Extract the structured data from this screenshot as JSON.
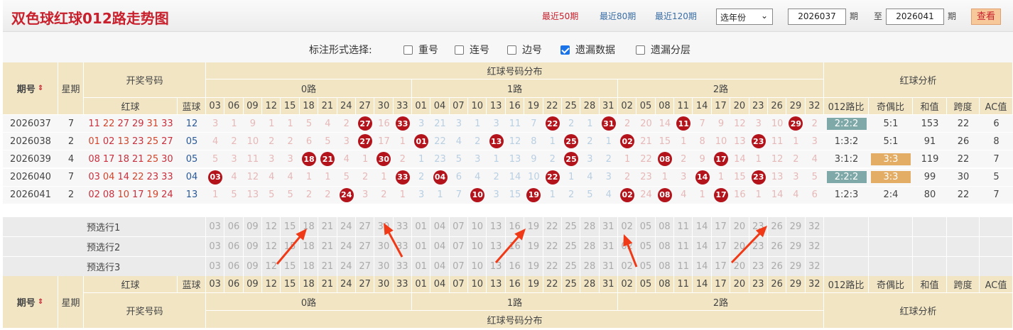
{
  "header": {
    "title": "双色球红球012路走势图",
    "recent": [
      "最近50期",
      "最近80期",
      "最近120期"
    ],
    "year_select": "选年份",
    "from": "2026037",
    "to": "2026041",
    "qi": "期",
    "zhi": "至",
    "view_button": "查看"
  },
  "options": {
    "label": "标注形式选择:",
    "items": [
      {
        "label": "重号",
        "checked": false
      },
      {
        "label": "连号",
        "checked": false
      },
      {
        "label": "边号",
        "checked": false
      },
      {
        "label": "遗漏数据",
        "checked": true
      },
      {
        "label": "遗漏分层",
        "checked": false
      }
    ]
  },
  "table_header": {
    "period": "期号",
    "sort": "⇕",
    "weekday": "星期",
    "draw": "开奖号码",
    "red": "红球",
    "blue": "蓝球",
    "dist": "红球号码分布",
    "roads": [
      "0路",
      "1路",
      "2路"
    ],
    "analysis": "红球分析",
    "analysis_cols": [
      "012路比",
      "奇偶比",
      "和值",
      "跨度",
      "AC值"
    ]
  },
  "columns": {
    "road0": [
      "03",
      "06",
      "09",
      "12",
      "15",
      "18",
      "21",
      "24",
      "27",
      "30",
      "33"
    ],
    "road1": [
      "01",
      "04",
      "07",
      "10",
      "13",
      "16",
      "19",
      "22",
      "25",
      "28",
      "31"
    ],
    "road2": [
      "02",
      "05",
      "08",
      "11",
      "14",
      "17",
      "20",
      "23",
      "26",
      "29",
      "32"
    ]
  },
  "colors": {
    "ball": "#b3131b",
    "road0": "#e6b8b8",
    "road1": "#b9cfe2",
    "road2": "#e6b8b8",
    "ratio_tag": "#7fa8a8",
    "parity_tag": "#e3ad66"
  },
  "rows": [
    {
      "period": "2026037",
      "weekday": "7",
      "reds": [
        "11",
        "22",
        "27",
        "29",
        "31",
        "33"
      ],
      "blue": "12",
      "omit": [
        "3",
        "1",
        "9",
        "1",
        "1",
        "5",
        "4",
        "2",
        "27",
        "16",
        "33",
        "3",
        "21",
        "3",
        "1",
        "3",
        "11",
        "7",
        "22",
        "2",
        "1",
        "31",
        "2",
        "20",
        "14",
        "11",
        "7",
        "9",
        "12",
        "3",
        "10",
        "29",
        "2"
      ],
      "ratio": "2:2:2",
      "ratio_tag": true,
      "parity": "5:1",
      "parity_tag": false,
      "sum": "153",
      "span": "22",
      "ac": "6"
    },
    {
      "period": "2026038",
      "weekday": "2",
      "reds": [
        "01",
        "02",
        "13",
        "23",
        "25",
        "27"
      ],
      "blue": "05",
      "omit": [
        "4",
        "2",
        "10",
        "2",
        "2",
        "6",
        "5",
        "3",
        "27",
        "17",
        "1",
        "01",
        "22",
        "4",
        "2",
        "13",
        "12",
        "8",
        "1",
        "25",
        "2",
        "1",
        "02",
        "21",
        "15",
        "1",
        "8",
        "10",
        "13",
        "23",
        "11",
        "1",
        "3"
      ],
      "ratio": "1:3:2",
      "ratio_tag": false,
      "parity": "5:1",
      "parity_tag": false,
      "sum": "91",
      "span": "26",
      "ac": "8"
    },
    {
      "period": "2026039",
      "weekday": "4",
      "reds": [
        "08",
        "17",
        "18",
        "21",
        "25",
        "30"
      ],
      "blue": "05",
      "omit": [
        "5",
        "3",
        "11",
        "3",
        "3",
        "18",
        "21",
        "4",
        "1",
        "30",
        "2",
        "1",
        "23",
        "5",
        "3",
        "1",
        "13",
        "9",
        "2",
        "25",
        "3",
        "2",
        "1",
        "22",
        "08",
        "2",
        "9",
        "17",
        "14",
        "1",
        "12",
        "2",
        "4"
      ],
      "ratio": "3:1:2",
      "ratio_tag": false,
      "parity": "3:3",
      "parity_tag": true,
      "sum": "119",
      "span": "22",
      "ac": "7"
    },
    {
      "period": "2026040",
      "weekday": "7",
      "reds": [
        "03",
        "04",
        "14",
        "22",
        "23",
        "33"
      ],
      "blue": "04",
      "omit": [
        "03",
        "4",
        "12",
        "4",
        "4",
        "1",
        "1",
        "5",
        "2",
        "1",
        "33",
        "2",
        "04",
        "6",
        "4",
        "2",
        "14",
        "10",
        "22",
        "1",
        "4",
        "3",
        "2",
        "23",
        "1",
        "3",
        "14",
        "1",
        "15",
        "23",
        "13",
        "3",
        "5"
      ],
      "ratio": "2:2:2",
      "ratio_tag": true,
      "parity": "3:3",
      "parity_tag": true,
      "sum": "99",
      "span": "30",
      "ac": "5"
    },
    {
      "period": "2026041",
      "weekday": "2",
      "reds": [
        "02",
        "08",
        "10",
        "17",
        "19",
        "24"
      ],
      "blue": "13",
      "omit": [
        "1",
        "5",
        "13",
        "5",
        "5",
        "2",
        "2",
        "24",
        "3",
        "2",
        "1",
        "3",
        "1",
        "7",
        "10",
        "3",
        "15",
        "19",
        "1",
        "2",
        "5",
        "4",
        "02",
        "24",
        "08",
        "4",
        "1",
        "17",
        "16",
        "1",
        "14",
        "4",
        "6"
      ],
      "ratio": "1:2:3",
      "ratio_tag": false,
      "parity": "2:4",
      "parity_tag": false,
      "sum": "80",
      "span": "22",
      "ac": "7"
    }
  ],
  "preselect": [
    "预选行1",
    "预选行2",
    "预选行3"
  ]
}
